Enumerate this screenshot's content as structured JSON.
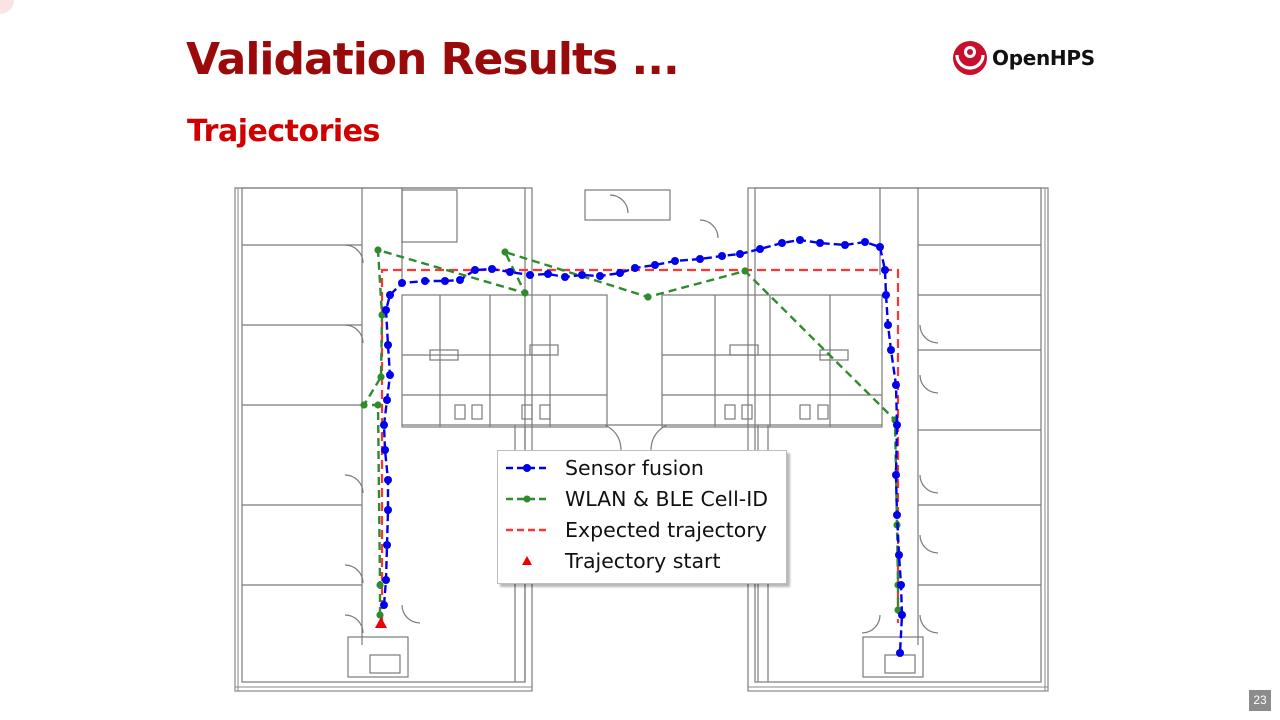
{
  "slide": {
    "title": "Validation Results ...",
    "subtitle": "Trajectories",
    "page_number": "23"
  },
  "logo": {
    "text": "OpenHPS",
    "icon": "openhps-logo-icon"
  },
  "colors": {
    "title": "#9b0a0a",
    "subtitle": "#d00000",
    "sensor_fusion": "#0000ee",
    "wlan_ble": "#2e8b2e",
    "expected": "#ff3333",
    "start": "#ee0000"
  },
  "legend": {
    "position": "lower-center",
    "entries": [
      {
        "key": "sensor",
        "label": "Sensor fusion"
      },
      {
        "key": "wlan",
        "label": "WLAN & BLE Cell-ID"
      },
      {
        "key": "expected",
        "label": "Expected trajectory"
      },
      {
        "key": "start",
        "label": "Trajectory start"
      }
    ]
  }
}
